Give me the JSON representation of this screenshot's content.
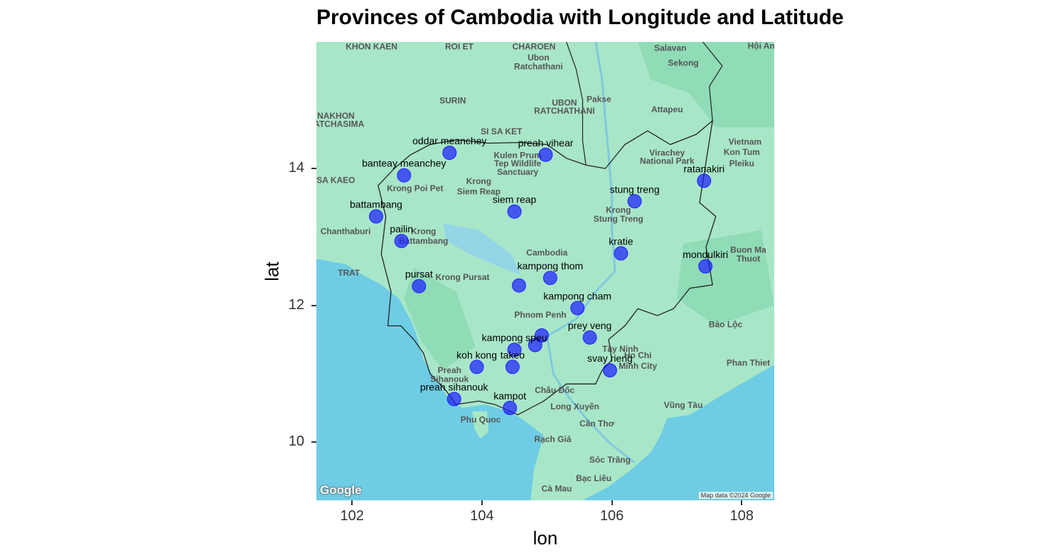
{
  "chart_data": {
    "type": "scatter",
    "title": "Provinces of Cambodia with Longitude and Latitude",
    "xlabel": "lon",
    "ylabel": "lat",
    "xlim": [
      101.45,
      108.5
    ],
    "ylim": [
      9.15,
      15.85
    ],
    "x_ticks": [
      102,
      104,
      106,
      108
    ],
    "y_ticks": [
      10,
      12,
      14
    ],
    "x_tick_labels": [
      "102",
      "104",
      "106",
      "108"
    ],
    "y_tick_labels": [
      "10",
      "12",
      "14"
    ],
    "point_color": "#1a1aff",
    "points": [
      {
        "label": "oddar meanchey",
        "x": 103.5,
        "y": 14.23
      },
      {
        "label": "preah vihear",
        "x": 104.98,
        "y": 14.2
      },
      {
        "label": "banteay meanchey",
        "x": 102.8,
        "y": 13.9
      },
      {
        "label": "ratanakiri",
        "x": 107.42,
        "y": 13.82
      },
      {
        "label": "stung treng",
        "x": 106.35,
        "y": 13.52
      },
      {
        "label": "siem reap",
        "x": 104.5,
        "y": 13.37
      },
      {
        "label": "battambang",
        "x": 102.37,
        "y": 13.3
      },
      {
        "label": "pailin",
        "x": 102.76,
        "y": 12.94
      },
      {
        "label": "kratie",
        "x": 106.14,
        "y": 12.76
      },
      {
        "label": "mondulkiri",
        "x": 107.44,
        "y": 12.57
      },
      {
        "label": "kampong thom",
        "x": 105.05,
        "y": 12.4
      },
      {
        "label": "pursat",
        "x": 103.03,
        "y": 12.28
      },
      {
        "label": "",
        "x": 104.57,
        "y": 12.29
      },
      {
        "label": "kampong cham",
        "x": 105.47,
        "y": 11.96
      },
      {
        "label": "prey veng",
        "x": 105.66,
        "y": 11.53
      },
      {
        "label": "",
        "x": 104.92,
        "y": 11.56
      },
      {
        "label": "",
        "x": 104.82,
        "y": 11.42
      },
      {
        "label": "kampong speu",
        "x": 104.5,
        "y": 11.35
      },
      {
        "label": "takeo",
        "x": 104.47,
        "y": 11.1
      },
      {
        "label": "koh kong",
        "x": 103.92,
        "y": 11.1
      },
      {
        "label": "svay rieng",
        "x": 105.97,
        "y": 11.05
      },
      {
        "label": "preah sihanouk",
        "x": 103.57,
        "y": 10.63
      },
      {
        "label": "kampot",
        "x": 104.43,
        "y": 10.5
      }
    ]
  },
  "map": {
    "land_color": "#a8e6c8",
    "water_color": "#6ecde4",
    "border_color": "#222222",
    "attribution": "Map data ©2024 Google",
    "logo": "Google",
    "place_labels": [
      {
        "text": "Salavan",
        "x": 106.9,
        "y": 15.72
      },
      {
        "text": "Hội An",
        "x": 108.3,
        "y": 15.75
      },
      {
        "text": "KHON KAEN",
        "x": 102.3,
        "y": 15.74
      },
      {
        "text": "ROI ET",
        "x": 103.65,
        "y": 15.74
      },
      {
        "text": "CHAROEN",
        "x": 104.8,
        "y": 15.74
      },
      {
        "text": "Ubon",
        "x": 104.87,
        "y": 15.58
      },
      {
        "text": "Ratchathani",
        "x": 104.87,
        "y": 15.45
      },
      {
        "text": "Sekong",
        "x": 107.1,
        "y": 15.5
      },
      {
        "text": "SURIN",
        "x": 103.55,
        "y": 14.95
      },
      {
        "text": "UBON",
        "x": 105.27,
        "y": 14.92
      },
      {
        "text": "RATCHATHANI",
        "x": 105.27,
        "y": 14.8
      },
      {
        "text": "Pakse",
        "x": 105.8,
        "y": 14.97
      },
      {
        "text": "Attapeu",
        "x": 106.85,
        "y": 14.82
      },
      {
        "text": "NAKHON",
        "x": 101.75,
        "y": 14.73
      },
      {
        "text": "RATCHASIMA",
        "x": 101.75,
        "y": 14.61
      },
      {
        "text": "SI SA KET",
        "x": 104.3,
        "y": 14.5
      },
      {
        "text": "Vietnam",
        "x": 108.05,
        "y": 14.35
      },
      {
        "text": "Kulen Prum",
        "x": 104.55,
        "y": 14.15
      },
      {
        "text": "Tep Wildlife",
        "x": 104.55,
        "y": 14.03
      },
      {
        "text": "Sanctuary",
        "x": 104.55,
        "y": 13.91
      },
      {
        "text": "Virachey",
        "x": 106.85,
        "y": 14.19
      },
      {
        "text": "National Park",
        "x": 106.85,
        "y": 14.07
      },
      {
        "text": "Kon Tum",
        "x": 108.0,
        "y": 14.2
      },
      {
        "text": "Pleiku",
        "x": 108.0,
        "y": 14.03
      },
      {
        "text": "SA KAEO",
        "x": 101.75,
        "y": 13.79
      },
      {
        "text": "Krong",
        "x": 103.95,
        "y": 13.77
      },
      {
        "text": "Siem Reap",
        "x": 103.95,
        "y": 13.62
      },
      {
        "text": "Krong Poi Pet",
        "x": 102.97,
        "y": 13.67
      },
      {
        "text": "Krong",
        "x": 106.1,
        "y": 13.35
      },
      {
        "text": "Stung Treng",
        "x": 106.1,
        "y": 13.22
      },
      {
        "text": "Chanthaburi",
        "x": 101.9,
        "y": 13.04
      },
      {
        "text": "Krong",
        "x": 103.1,
        "y": 13.04
      },
      {
        "text": "Battambang",
        "x": 103.1,
        "y": 12.9
      },
      {
        "text": "Cambodia",
        "x": 105.0,
        "y": 12.73
      },
      {
        "text": "Buon Ma",
        "x": 108.1,
        "y": 12.77
      },
      {
        "text": "Thuot",
        "x": 108.1,
        "y": 12.64
      },
      {
        "text": "TRAT",
        "x": 101.95,
        "y": 12.43
      },
      {
        "text": "Krong Pursat",
        "x": 103.7,
        "y": 12.37
      },
      {
        "text": "Phnom Penh",
        "x": 104.9,
        "y": 11.82
      },
      {
        "text": "Bảo Lộc",
        "x": 107.75,
        "y": 11.68
      },
      {
        "text": "Tây Ninh",
        "x": 106.13,
        "y": 11.32
      },
      {
        "text": "Ho Chi",
        "x": 106.4,
        "y": 11.23
      },
      {
        "text": "Minh City",
        "x": 106.4,
        "y": 11.07
      },
      {
        "text": "Phan Thiet",
        "x": 108.1,
        "y": 11.12
      },
      {
        "text": "Preah",
        "x": 103.5,
        "y": 11.01
      },
      {
        "text": "Sihanouk",
        "x": 103.5,
        "y": 10.88
      },
      {
        "text": "Châu Đốc",
        "x": 105.12,
        "y": 10.72
      },
      {
        "text": "Long Xuyên",
        "x": 105.43,
        "y": 10.48
      },
      {
        "text": "Vũng Tàu",
        "x": 107.1,
        "y": 10.5
      },
      {
        "text": "Phu Quoc",
        "x": 103.98,
        "y": 10.29
      },
      {
        "text": "Cần Thơ",
        "x": 105.77,
        "y": 10.23
      },
      {
        "text": "Rạch Giá",
        "x": 105.09,
        "y": 10.0
      },
      {
        "text": "Sóc Trăng",
        "x": 105.97,
        "y": 9.7
      },
      {
        "text": "Bạc Liêu",
        "x": 105.72,
        "y": 9.43
      },
      {
        "text": "Cà Mau",
        "x": 105.15,
        "y": 9.28
      }
    ]
  }
}
